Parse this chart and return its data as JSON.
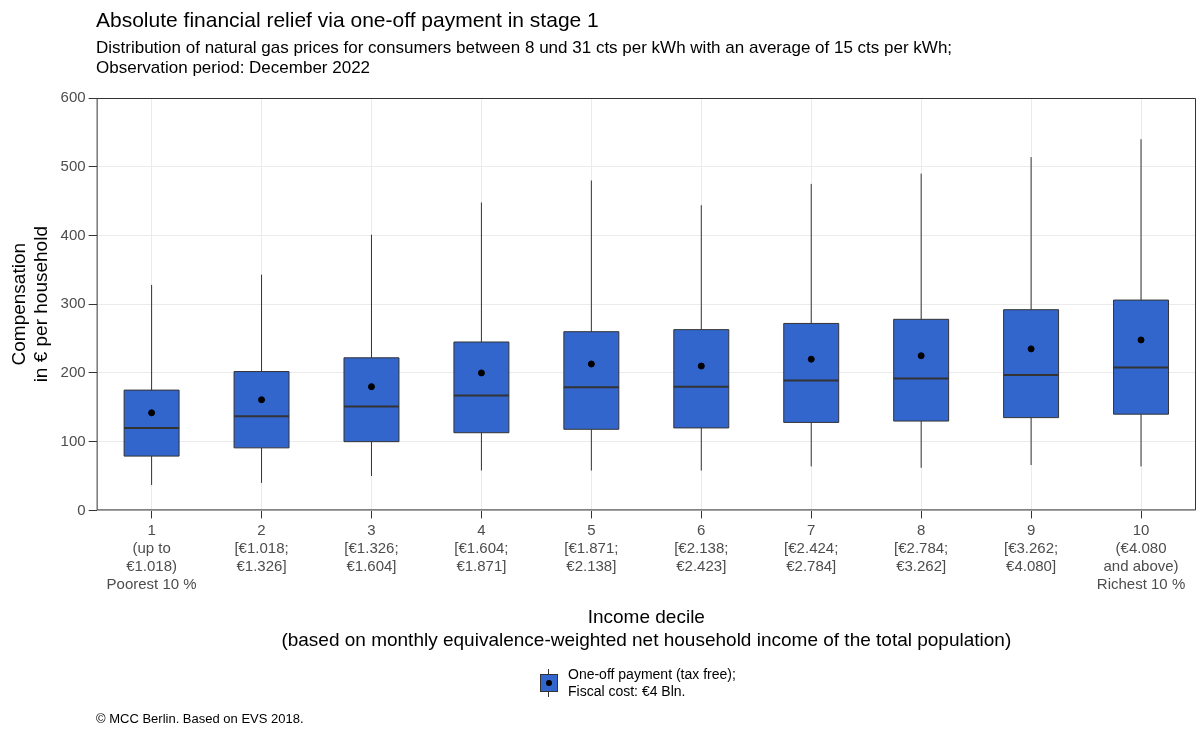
{
  "chart_data": {
    "type": "box",
    "title": "Absolute financial relief via one-off payment in stage 1",
    "subtitle": "Distribution of natural gas prices for consumers between 8 und 31 cts per kWh with an average of 15 cts per kWh;\nObservation period: December 2022",
    "xlabel": "Income decile\n(based on monthly equivalence-weighted net household income of the total population)",
    "ylabel": "Compensation\nin € per household",
    "categories": [
      "1\n(up to\n€1.018)\nPoorest 10 %",
      "2\n[€1.018;\n€1.326]",
      "3\n[€1.326;\n€1.604]",
      "4\n[€1.604;\n€1.871]",
      "5\n[€1.871;\n€2.138]",
      "6\n[€2.138;\n€2.423]",
      "7\n[€2.424;\n€2.784]",
      "8\n[€2.784;\n€3.262]",
      "9\n[€3.262;\n€4.080]",
      "10\n(€4.080\nand above)\nRichest 10 %"
    ],
    "series": [
      {
        "name": "One-off payment (tax free);\nFiscal cost: €4 Bln.",
        "color": "#3366cc",
        "boxes": [
          {
            "low": 37,
            "q1": 79,
            "median": 120,
            "q3": 175,
            "high": 328,
            "mean": 142
          },
          {
            "low": 40,
            "q1": 91,
            "median": 137,
            "q3": 202,
            "high": 343,
            "mean": 161
          },
          {
            "low": 50,
            "q1": 100,
            "median": 151,
            "q3": 222,
            "high": 401,
            "mean": 180
          },
          {
            "low": 58,
            "q1": 113,
            "median": 167,
            "q3": 245,
            "high": 448,
            "mean": 200
          },
          {
            "low": 58,
            "q1": 118,
            "median": 179,
            "q3": 260,
            "high": 480,
            "mean": 213
          },
          {
            "low": 58,
            "q1": 120,
            "median": 180,
            "q3": 263,
            "high": 444,
            "mean": 210
          },
          {
            "low": 64,
            "q1": 128,
            "median": 189,
            "q3": 272,
            "high": 475,
            "mean": 220
          },
          {
            "low": 62,
            "q1": 130,
            "median": 192,
            "q3": 278,
            "high": 490,
            "mean": 225
          },
          {
            "low": 66,
            "q1": 135,
            "median": 197,
            "q3": 292,
            "high": 514,
            "mean": 235
          },
          {
            "low": 64,
            "q1": 140,
            "median": 208,
            "q3": 306,
            "high": 540,
            "mean": 248
          }
        ]
      }
    ],
    "ylim": [
      0,
      600
    ],
    "yticks": [
      0,
      100,
      200,
      300,
      400,
      500,
      600
    ],
    "grid": true,
    "legend": "bottom",
    "marker": "circle",
    "annotations": [
      "© MCC Berlin. Based on EVS 2018."
    ]
  }
}
